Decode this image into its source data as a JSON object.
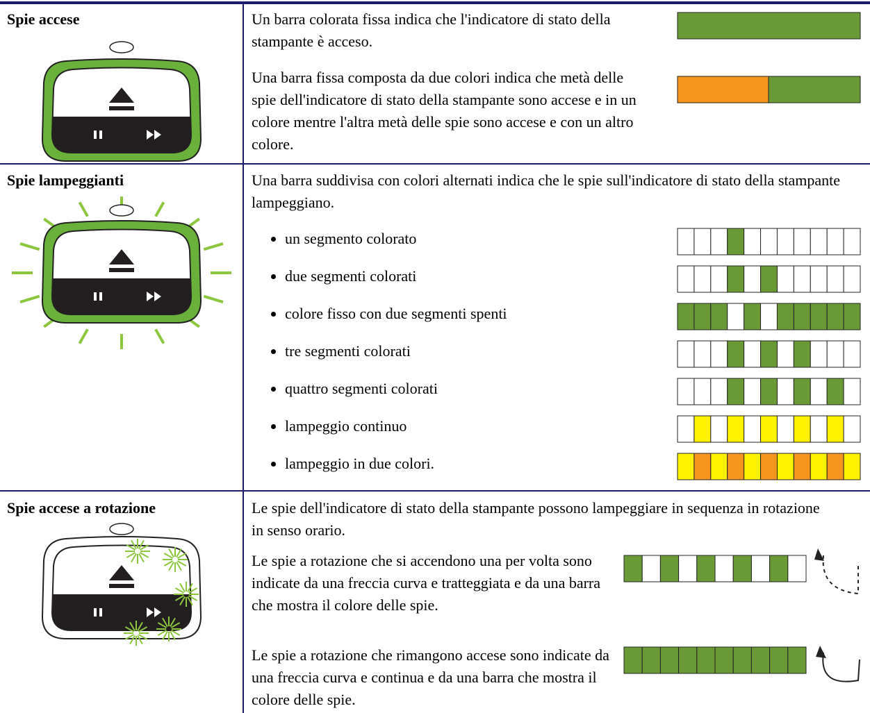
{
  "rows": [
    {
      "label": "Spie accese",
      "paragraphs": [
        "Un barra colorata fissa indica che l'indicatore di stato della stampante è acceso.",
        "Una barra fissa composta da due colori indica che metà delle spie dell'indicatore di stato della stampante sono accese e in un colore mentre l'altra metà delle spie sono accese e con un altro colore."
      ]
    },
    {
      "label": "Spie lampeggianti",
      "intro": "Una barra suddivisa con colori alternati indica che le spie sull'indicatore di stato della stampante lampeggiano.",
      "bullets": [
        "un segmento colorato",
        "due segmenti colorati",
        "colore fisso con due segmenti spenti",
        "tre segmenti colorati",
        "quattro segmenti colorati",
        "lampeggio continuo",
        "lampeggio in due colori."
      ]
    },
    {
      "label": "Spie accese a rotazione",
      "intro": "Le spie dell'indicatore di stato della stampante possono lampeggiare in sequenza in rotazione in senso orario.",
      "paragraphs": [
        "Le spie a rotazione che si accendono una per volta sono indicate da una freccia curva e tratteggiata e da una barra che mostra il colore delle spie.",
        "Le spie a rotazione che rimangono accese sono indicate da una freccia curva e continua e da una barra che mostra il colore delle spie."
      ]
    }
  ]
}
